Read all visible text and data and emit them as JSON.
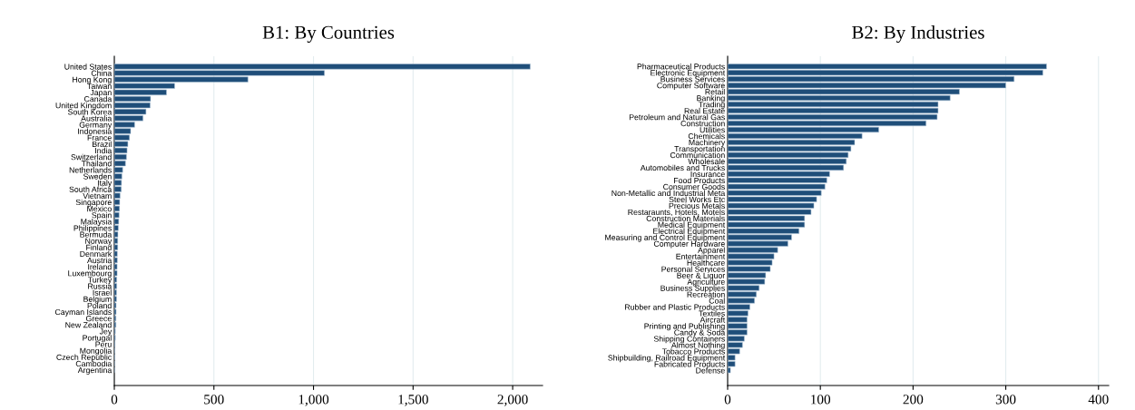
{
  "chart_data": [
    {
      "type": "bar",
      "orientation": "horizontal",
      "title": "B1: By Countries",
      "grid": "x",
      "color": "#1f4e79",
      "categories": [
        "United States",
        "China",
        "Hong Kong",
        "Taiwan",
        "Japan",
        "Canada",
        "United Kingdom",
        "South Korea",
        "Australia",
        "Germany",
        "Indonesia",
        "France",
        "Brazil",
        "India",
        "Switzerland",
        "Thailand",
        "Netherlands",
        "Sweden",
        "Italy",
        "South Africa",
        "Vietnam",
        "Singapore",
        "Mexico",
        "Spain",
        "Malaysia",
        "Philippines",
        "Bermuda",
        "Norway",
        "Finland",
        "Denmark",
        "Austria",
        "Ireland",
        "Luxembourg",
        "Turkey",
        "Russia",
        "Israel",
        "Belgium",
        "Poland",
        "Cayman Islands",
        "Greece",
        "New Zealand",
        "Jey",
        "Portugal",
        "Peru",
        "Mongolia",
        "Czech Republic",
        "Cambodia",
        "Argentina"
      ],
      "values": [
        2088,
        1055,
        671,
        303,
        262,
        182,
        180,
        159,
        144,
        102,
        82,
        76,
        68,
        64,
        61,
        56,
        42,
        38,
        36,
        35,
        29,
        27,
        26,
        24,
        22,
        20,
        18,
        17,
        17,
        15,
        15,
        14,
        14,
        12,
        12,
        11,
        11,
        9,
        9,
        8,
        8,
        5,
        5,
        3,
        2,
        2,
        1,
        1
      ],
      "xlim": [
        0,
        2150
      ],
      "xticks": [
        0,
        500,
        {
          "value": 1000,
          "label": "1,000"
        },
        {
          "value": 1500,
          "label": "1,500"
        },
        {
          "value": 2000,
          "label": "2,000"
        }
      ]
    },
    {
      "type": "bar",
      "orientation": "horizontal",
      "title": "B2: By Industries",
      "grid": "x",
      "color": "#1f4e79",
      "categories": [
        "Pharmaceutical Products",
        "Electronic Equipment",
        "Business Services",
        "Computer Software",
        "Retail",
        "Banking",
        "Trading",
        "Real Estate",
        "Petroleum and Natural Gas",
        "Construction",
        "Utilities",
        "Chemicals",
        "Machinery",
        "Transportation",
        "Communication",
        "Wholesale",
        "Automobiles and Trucks",
        "Insurance",
        "Food Products",
        "Consumer Goods",
        "Non-Metallic and Industrial Meta",
        "Steel Works Etc",
        "Precious Metals",
        "Restaraunts, Hotels, Motels",
        "Construction Materials",
        "Medical Equipment",
        "Electrical Equipment",
        "Measuring and Control Equipment",
        "Computer Hardware",
        "Apparel",
        "Entertainment",
        "Healthcare",
        "Personal Services",
        "Beer & Liquor",
        "Agriculture",
        "Business Supplies",
        "Recreation",
        "Coal",
        "Rubber and Plastic Products",
        "Textiles",
        "Aircraft",
        "Printing and Publishing",
        "Candy & Soda",
        "Shipping Containers",
        "Almost Nothing",
        "Tobacco Products",
        "Shipbuilding, Railroad Equipment",
        "Fabricated Products",
        "Defense"
      ],
      "values": [
        344,
        340,
        309,
        300,
        250,
        240,
        227,
        227,
        226,
        214,
        163,
        145,
        137,
        133,
        130,
        128,
        125,
        110,
        107,
        105,
        101,
        96,
        93,
        90,
        83,
        83,
        77,
        69,
        65,
        54,
        50,
        48,
        46,
        41,
        40,
        34,
        31,
        29,
        24,
        22,
        21,
        21,
        21,
        18,
        16,
        13,
        8,
        8,
        3
      ],
      "xlim": [
        0,
        411
      ],
      "xticks": [
        0,
        100,
        200,
        300,
        400
      ]
    }
  ]
}
